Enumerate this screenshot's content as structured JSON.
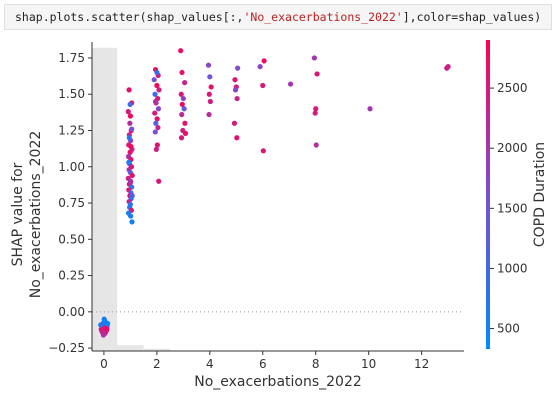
{
  "code_cell": {
    "prefix": "shap.plots.scatter(shap_values[:,",
    "string_arg": "'No_exacerbations_2022'",
    "suffix": "],color=shap_values)"
  },
  "chart_data": {
    "type": "scatter",
    "xlabel": "No_exacerbations_2022",
    "ylabel": "SHAP value for No_exacerbations_2022",
    "ylabel_lines": [
      "SHAP value for",
      "No_exacerbations_2022"
    ],
    "colorbar_label": "COPD Duration",
    "xlim": [
      -0.45,
      13.6
    ],
    "ylim": [
      -0.27,
      1.86
    ],
    "x_ticks": [
      0,
      2,
      4,
      6,
      8,
      10,
      12
    ],
    "y_ticks": [
      -0.25,
      0.0,
      0.25,
      0.5,
      0.75,
      1.0,
      1.25,
      1.5,
      1.75
    ],
    "y_tick_labels": [
      "−0.25",
      "0.00",
      "0.25",
      "0.50",
      "0.75",
      "1.00",
      "1.25",
      "1.50",
      "1.75"
    ],
    "colorbar_ticks": [
      500,
      1000,
      1500,
      2000,
      2500
    ],
    "colorbar_range": [
      330,
      2900
    ],
    "colors": {
      "low": "#008afb",
      "mid": "#7c4dd6",
      "high": "#ff0052",
      "hist": "#e6e6e6",
      "zero_line": "#999999"
    },
    "histogram": [
      {
        "x0": -0.45,
        "x1": 0.5,
        "height": 1.82
      },
      {
        "x0": 0.5,
        "x1": 1.5,
        "height": -0.23
      },
      {
        "x0": 1.5,
        "x1": 2.5,
        "height": -0.255
      }
    ],
    "points": [
      [
        0.02,
        -0.06,
        500
      ],
      [
        0.05,
        -0.07,
        480
      ],
      [
        -0.03,
        -0.08,
        520
      ],
      [
        0.08,
        -0.09,
        600
      ],
      [
        -0.05,
        -0.1,
        700
      ],
      [
        0.1,
        -0.11,
        550
      ],
      [
        0.0,
        -0.12,
        2500
      ],
      [
        -0.08,
        -0.13,
        2700
      ],
      [
        0.06,
        -0.14,
        2400
      ],
      [
        0.12,
        -0.1,
        1000
      ],
      [
        -0.1,
        -0.12,
        2600
      ],
      [
        0.03,
        -0.15,
        2800
      ],
      [
        0.09,
        -0.13,
        2200
      ],
      [
        -0.02,
        -0.16,
        2000
      ],
      [
        0.14,
        -0.08,
        450
      ],
      [
        -0.12,
        -0.09,
        800
      ],
      [
        0.04,
        -0.11,
        2500
      ],
      [
        0.11,
        -0.12,
        2700
      ],
      [
        -0.06,
        -0.14,
        2300
      ],
      [
        0.01,
        -0.05,
        520
      ],
      [
        0.95,
        1.53,
        2700
      ],
      [
        1.05,
        1.44,
        2600
      ],
      [
        0.92,
        1.38,
        2500
      ],
      [
        1.0,
        1.35,
        2800
      ],
      [
        0.98,
        1.3,
        2200
      ],
      [
        1.03,
        1.25,
        2600
      ],
      [
        0.96,
        1.22,
        2400
      ],
      [
        1.01,
        1.18,
        1800
      ],
      [
        0.94,
        1.15,
        2500
      ],
      [
        1.06,
        1.12,
        2300
      ],
      [
        0.99,
        1.1,
        2700
      ],
      [
        0.93,
        1.07,
        2000
      ],
      [
        1.02,
        1.05,
        2600
      ],
      [
        0.97,
        1.02,
        1500
      ],
      [
        1.04,
        1.0,
        2500
      ],
      [
        0.95,
        0.98,
        2200
      ],
      [
        1.0,
        0.96,
        1200
      ],
      [
        1.07,
        0.94,
        2600
      ],
      [
        0.92,
        0.92,
        2400
      ],
      [
        1.01,
        0.9,
        1900
      ],
      [
        0.96,
        0.88,
        2700
      ],
      [
        1.05,
        0.86,
        800
      ],
      [
        0.94,
        0.84,
        2500
      ],
      [
        1.02,
        0.82,
        1300
      ],
      [
        0.98,
        0.8,
        2600
      ],
      [
        1.03,
        0.78,
        600
      ],
      [
        0.95,
        0.76,
        2300
      ],
      [
        1.0,
        0.74,
        900
      ],
      [
        0.97,
        0.72,
        700
      ],
      [
        1.04,
        0.7,
        2500
      ],
      [
        0.93,
        0.68,
        550
      ],
      [
        1.01,
        0.66,
        650
      ],
      [
        1.06,
        0.62,
        500
      ],
      [
        0.99,
        1.43,
        1000
      ],
      [
        1.05,
        1.26,
        1600
      ],
      [
        0.96,
        1.2,
        800
      ],
      [
        1.02,
        1.14,
        2800
      ],
      [
        0.94,
        1.03,
        600
      ],
      [
        1.0,
        0.89,
        2100
      ],
      [
        1.07,
        0.8,
        1100
      ],
      [
        1.95,
        1.67,
        2700
      ],
      [
        2.05,
        1.63,
        2500
      ],
      [
        1.9,
        1.6,
        1500
      ],
      [
        2.0,
        1.56,
        2800
      ],
      [
        2.08,
        1.53,
        2400
      ],
      [
        1.93,
        1.5,
        1000
      ],
      [
        2.03,
        1.47,
        2600
      ],
      [
        1.97,
        1.44,
        2200
      ],
      [
        2.06,
        1.4,
        1800
      ],
      [
        1.92,
        1.37,
        2500
      ],
      [
        2.01,
        1.33,
        2700
      ],
      [
        1.96,
        1.3,
        1200
      ],
      [
        2.04,
        1.27,
        2300
      ],
      [
        1.94,
        1.24,
        1600
      ],
      [
        2.02,
        1.15,
        2600
      ],
      [
        1.98,
        1.12,
        2400
      ],
      [
        2.07,
        0.9,
        2500
      ],
      [
        2.0,
        1.65,
        900
      ],
      [
        1.95,
        1.45,
        2100
      ],
      [
        2.9,
        1.8,
        2700
      ],
      [
        2.95,
        1.65,
        2600
      ],
      [
        3.05,
        1.58,
        2300
      ],
      [
        2.92,
        1.5,
        2500
      ],
      [
        3.0,
        1.47,
        1800
      ],
      [
        2.96,
        1.43,
        2700
      ],
      [
        3.03,
        1.4,
        1400
      ],
      [
        2.94,
        1.36,
        2200
      ],
      [
        3.06,
        1.3,
        2600
      ],
      [
        2.98,
        1.25,
        2400
      ],
      [
        2.93,
        1.2,
        2500
      ],
      [
        3.08,
        1.23,
        2700
      ],
      [
        3.95,
        1.7,
        1800
      ],
      [
        4.0,
        1.62,
        1500
      ],
      [
        4.05,
        1.55,
        2600
      ],
      [
        3.98,
        1.5,
        2500
      ],
      [
        4.02,
        1.45,
        2400
      ],
      [
        3.97,
        1.36,
        2200
      ],
      [
        4.95,
        1.6,
        2600
      ],
      [
        5.05,
        1.68,
        1600
      ],
      [
        5.0,
        1.55,
        2500
      ],
      [
        4.97,
        1.53,
        1700
      ],
      [
        5.03,
        1.47,
        2300
      ],
      [
        4.93,
        1.3,
        2500
      ],
      [
        5.02,
        1.2,
        2600
      ],
      [
        5.9,
        1.69,
        1800
      ],
      [
        6.05,
        1.73,
        2700
      ],
      [
        6.0,
        1.56,
        2500
      ],
      [
        6.02,
        1.11,
        2600
      ],
      [
        7.05,
        1.57,
        2000
      ],
      [
        7.95,
        1.75,
        2000
      ],
      [
        8.05,
        1.64,
        2600
      ],
      [
        8.0,
        1.4,
        2500
      ],
      [
        7.98,
        1.37,
        2500
      ],
      [
        8.02,
        1.15,
        2100
      ],
      [
        10.05,
        1.4,
        2000
      ],
      [
        12.95,
        1.68,
        2500
      ],
      [
        13.0,
        1.69,
        2400
      ]
    ]
  }
}
